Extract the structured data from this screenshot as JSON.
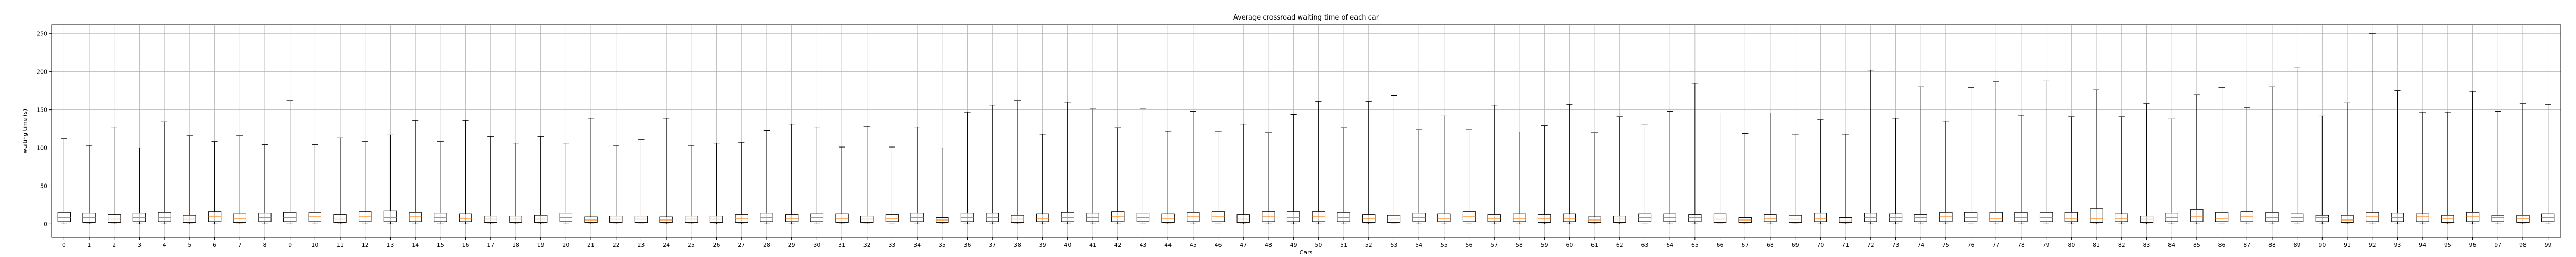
{
  "chart_data": {
    "type": "box",
    "title": "Average crossroad waiting time of each car",
    "xlabel": "Cars",
    "ylabel": "waiting time (s)",
    "ylim": [
      -18,
      262
    ],
    "yticks": [
      0,
      50,
      100,
      150,
      200,
      250
    ],
    "grid": true,
    "colors": {
      "box": "#000000",
      "median": "#ff7f0e",
      "grid": "#b0b0b0",
      "axis": "#000000"
    },
    "categories": [
      "0",
      "1",
      "2",
      "3",
      "4",
      "5",
      "6",
      "7",
      "8",
      "9",
      "10",
      "11",
      "12",
      "13",
      "14",
      "15",
      "16",
      "17",
      "18",
      "19",
      "20",
      "21",
      "22",
      "23",
      "24",
      "25",
      "26",
      "27",
      "28",
      "29",
      "30",
      "31",
      "32",
      "33",
      "34",
      "35",
      "36",
      "37",
      "38",
      "39",
      "40",
      "41",
      "42",
      "43",
      "44",
      "45",
      "46",
      "47",
      "48",
      "49",
      "50",
      "51",
      "52",
      "53",
      "54",
      "55",
      "56",
      "57",
      "58",
      "59",
      "60",
      "61",
      "62",
      "63",
      "64",
      "65",
      "66",
      "67",
      "68",
      "69",
      "70",
      "71",
      "72",
      "73",
      "74",
      "75",
      "76",
      "77",
      "78",
      "79",
      "80",
      "81",
      "82",
      "83",
      "84",
      "85",
      "86",
      "87",
      "88",
      "89",
      "90",
      "91",
      "92",
      "93",
      "94",
      "95",
      "96",
      "97",
      "98",
      "99"
    ],
    "whisker_low": 0,
    "whisker_high": [
      112,
      103,
      127,
      100,
      134,
      116,
      108,
      116,
      104,
      162,
      104,
      113,
      108,
      117,
      136,
      108,
      136,
      115,
      106,
      115,
      106,
      139,
      103,
      111,
      139,
      103,
      106,
      107,
      123,
      131,
      127,
      101,
      128,
      101,
      127,
      100,
      147,
      156,
      162,
      118,
      160,
      151,
      126,
      151,
      122,
      148,
      122,
      131,
      120,
      144,
      161,
      126,
      161,
      169,
      124,
      142,
      124,
      156,
      121,
      129,
      157,
      120,
      141,
      131,
      148,
      185,
      146,
      119,
      146,
      118,
      137,
      118,
      202,
      139,
      180,
      135,
      179,
      187,
      143,
      188,
      141,
      176,
      141,
      158,
      138,
      170,
      179,
      153,
      180,
      205,
      142,
      159,
      250,
      175,
      147,
      147,
      174,
      148,
      158,
      157
    ],
    "q1": [
      3,
      2,
      2,
      3,
      3,
      2,
      3,
      2,
      3,
      3,
      3,
      2,
      3,
      3,
      3,
      3,
      3,
      2,
      2,
      2,
      3,
      2,
      2,
      2,
      2,
      2,
      2,
      2,
      3,
      3,
      3,
      2,
      2,
      3,
      3,
      2,
      3,
      3,
      2,
      3,
      3,
      3,
      3,
      3,
      2,
      3,
      3,
      2,
      3,
      3,
      3,
      3,
      2,
      2,
      3,
      3,
      3,
      3,
      3,
      2,
      3,
      2,
      2,
      3,
      3,
      3,
      2,
      2,
      3,
      2,
      3,
      2,
      3,
      3,
      3,
      3,
      3,
      3,
      3,
      3,
      3,
      2,
      3,
      2,
      3,
      3,
      3,
      3,
      3,
      3,
      3,
      2,
      3,
      3,
      3,
      2,
      3,
      3,
      2,
      3
    ],
    "median": [
      8,
      8,
      6,
      8,
      8,
      6,
      9,
      7,
      8,
      8,
      9,
      6,
      9,
      8,
      9,
      8,
      7,
      6,
      6,
      6,
      8,
      5,
      6,
      6,
      5,
      6,
      6,
      7,
      8,
      7,
      8,
      7,
      6,
      7,
      8,
      5,
      8,
      8,
      6,
      7,
      8,
      8,
      9,
      8,
      7,
      9,
      9,
      6,
      9,
      8,
      9,
      8,
      7,
      6,
      8,
      7,
      9,
      7,
      7,
      7,
      7,
      5,
      6,
      8,
      8,
      8,
      6,
      5,
      7,
      6,
      7,
      4,
      8,
      8,
      8,
      9,
      8,
      7,
      8,
      8,
      7,
      7,
      7,
      6,
      8,
      9,
      7,
      9,
      8,
      8,
      8,
      5,
      9,
      8,
      9,
      7,
      9,
      8,
      7,
      8
    ],
    "q3": [
      15,
      14,
      12,
      14,
      15,
      11,
      16,
      13,
      14,
      15,
      15,
      12,
      16,
      17,
      15,
      14,
      13,
      10,
      10,
      11,
      14,
      9,
      10,
      10,
      9,
      10,
      10,
      12,
      14,
      12,
      13,
      13,
      10,
      12,
      14,
      8,
      14,
      14,
      11,
      13,
      15,
      14,
      16,
      14,
      13,
      15,
      16,
      12,
      16,
      16,
      16,
      15,
      12,
      11,
      14,
      13,
      16,
      12,
      13,
      12,
      13,
      9,
      10,
      13,
      13,
      12,
      13,
      8,
      12,
      11,
      14,
      8,
      14,
      13,
      12,
      15,
      15,
      15,
      15,
      15,
      15,
      20,
      13,
      10,
      14,
      19,
      15,
      16,
      15,
      13,
      11,
      11,
      15,
      14,
      13,
      11,
      15,
      11,
      11,
      13
    ]
  }
}
